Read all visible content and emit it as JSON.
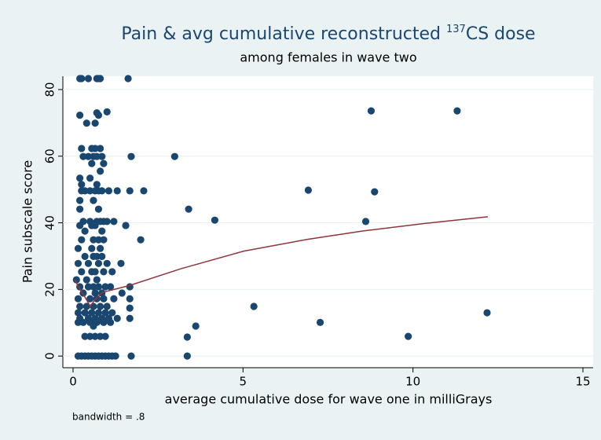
{
  "chart_data": {
    "type": "scatter",
    "title_parts": [
      "Pain & avg cumulative reconstructed ",
      "137",
      "CS dose"
    ],
    "subtitle": "among females in wave two",
    "x_label": "average cumulative dose for wave one in milliGrays",
    "y_label": "Pain subscale score",
    "note": "bandwidth = .8",
    "xlim": [
      -0.3,
      15.3
    ],
    "xticks": [
      0,
      5,
      10,
      15
    ],
    "ylim": [
      -3.5,
      84
    ],
    "yticks": [
      0,
      20,
      40,
      60,
      80
    ],
    "grid": true,
    "point_color": "#1a476f",
    "line_color": "#90353b",
    "points": {
      "x": [
        0.2,
        0.25,
        0.45,
        0.7,
        0.75,
        0.8,
        1.62,
        0.2,
        0.7,
        0.75,
        1.0,
        0.65,
        0.4,
        8.77,
        11.3,
        0.25,
        0.55,
        0.65,
        0.8,
        0.3,
        0.45,
        0.6,
        0.7,
        0.85,
        1.71,
        2.99,
        0.9,
        0.55,
        0.8,
        0.2,
        0.5,
        0.25,
        0.7,
        0.25,
        0.35,
        0.5,
        0.65,
        0.75,
        0.85,
        1.05,
        1.3,
        1.67,
        2.08,
        6.92,
        8.87,
        0.2,
        0.6,
        0.2,
        0.75,
        3.4,
        0.3,
        0.5,
        0.7,
        0.8,
        0.9,
        1.0,
        1.2,
        4.17,
        8.61,
        0.2,
        0.55,
        0.65,
        1.55,
        0.35,
        0.85,
        0.25,
        0.6,
        0.75,
        0.9,
        1.99,
        0.15,
        0.55,
        0.8,
        0.35,
        0.6,
        0.7,
        0.85,
        0.15,
        0.45,
        0.75,
        1.0,
        1.41,
        0.25,
        0.55,
        0.65,
        0.9,
        1.15,
        0.1,
        0.4,
        0.7,
        0.2,
        0.45,
        0.6,
        0.75,
        0.95,
        1.1,
        1.67,
        0.3,
        0.65,
        0.85,
        1.44,
        0.15,
        0.5,
        0.7,
        0.9,
        1.2,
        1.67,
        0.2,
        0.4,
        0.6,
        0.8,
        1.0,
        1.67,
        5.32,
        0.15,
        0.35,
        0.55,
        0.75,
        0.95,
        1.15,
        12.18,
        0.2,
        0.45,
        0.65,
        0.85,
        1.05,
        1.3,
        1.67,
        0.15,
        0.3,
        0.5,
        0.7,
        0.9,
        1.1,
        7.27,
        0.6,
        3.61,
        0.35,
        0.5,
        0.65,
        0.8,
        0.95,
        3.36,
        9.86,
        0.15,
        0.25,
        0.35,
        0.45,
        0.55,
        0.65,
        0.75,
        0.85,
        0.95,
        1.05,
        1.15,
        1.25,
        1.71,
        3.36
      ],
      "y": [
        83.3,
        83.3,
        83.3,
        83.3,
        83.3,
        83.3,
        83.3,
        72.3,
        73.0,
        72.3,
        73.3,
        69.9,
        69.9,
        73.6,
        73.6,
        62.3,
        62.3,
        62.3,
        62.3,
        59.9,
        59.9,
        59.9,
        59.9,
        59.9,
        59.9,
        59.9,
        57.8,
        57.8,
        55.5,
        53.4,
        53.4,
        51.5,
        51.5,
        49.6,
        49.6,
        49.6,
        49.6,
        49.6,
        49.6,
        49.6,
        49.6,
        49.6,
        49.6,
        49.8,
        49.3,
        46.7,
        46.7,
        44.1,
        44.1,
        44.1,
        40.4,
        40.4,
        40.4,
        40.4,
        40.4,
        40.4,
        40.4,
        40.8,
        40.4,
        39.2,
        39.2,
        39.2,
        39.2,
        37.5,
        37.5,
        34.9,
        34.9,
        34.9,
        34.9,
        34.9,
        32.3,
        32.3,
        32.3,
        29.9,
        29.9,
        29.9,
        29.9,
        27.8,
        27.8,
        27.8,
        27.8,
        27.8,
        25.3,
        25.3,
        25.3,
        25.3,
        25.3,
        22.9,
        22.9,
        22.9,
        20.8,
        20.8,
        20.8,
        20.8,
        20.8,
        20.8,
        20.8,
        18.9,
        18.9,
        18.9,
        18.9,
        17.2,
        17.2,
        17.2,
        17.2,
        17.2,
        17.2,
        14.9,
        14.9,
        14.9,
        14.9,
        14.9,
        14.4,
        14.9,
        13.0,
        13.0,
        13.0,
        13.0,
        13.0,
        13.0,
        13.0,
        11.3,
        11.3,
        11.3,
        11.3,
        11.3,
        11.3,
        11.3,
        10.1,
        10.1,
        10.1,
        10.1,
        10.1,
        10.1,
        10.1,
        9.0,
        9.0,
        5.9,
        5.9,
        5.9,
        5.9,
        5.9,
        5.7,
        5.9,
        0,
        0,
        0,
        0,
        0,
        0,
        0,
        0,
        0,
        0,
        0,
        0,
        0,
        0
      ]
    },
    "smooth": {
      "x": [
        0.05,
        0.16,
        0.35,
        0.51,
        0.63,
        0.86,
        1.32,
        1.67,
        3.17,
        5.02,
        6.88,
        8.5,
        10.35,
        12.2
      ],
      "y": [
        22.9,
        20.8,
        17.7,
        14.9,
        16.8,
        19.1,
        20.3,
        21.2,
        26.2,
        31.5,
        35.0,
        37.5,
        39.8,
        41.8
      ]
    }
  }
}
